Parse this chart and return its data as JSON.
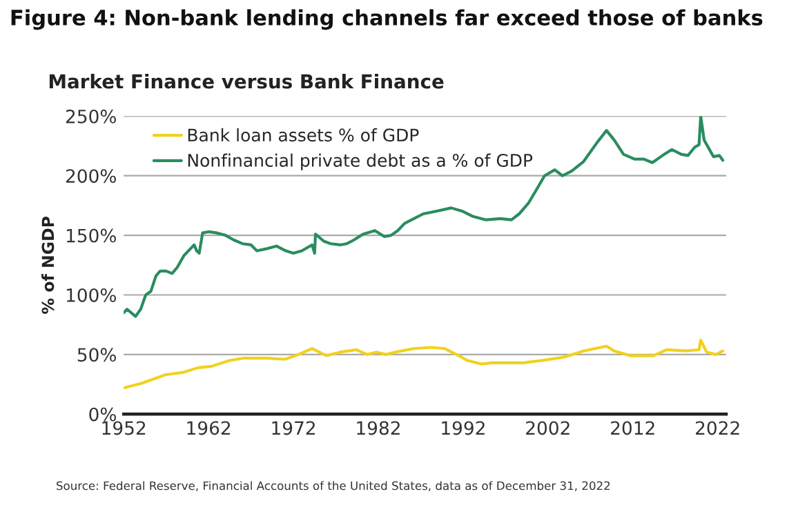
{
  "chart_data": {
    "type": "line",
    "title": "Figure 4: Non-bank lending channels far exceed those of banks",
    "subtitle": "Market Finance versus Bank Finance",
    "ylabel": "% of NGDP",
    "annotations": [
      "Source: Federal Reserve, Financial Accounts of the United States, data as of December 31, 2022"
    ],
    "series": [
      {
        "name": "Bank loan assets % of GDP",
        "color": "#f0d21e",
        "x": [
          1952,
          1954.2,
          1956.9,
          1959,
          1960.8,
          1962.3,
          1964.5,
          1966.2,
          1968.8,
          1971,
          1972.6,
          1974.2,
          1975.9,
          1977.5,
          1979.4,
          1980.7,
          1981.8,
          1982.9,
          1984,
          1986.2,
          1988.3,
          1989.8,
          1991.5,
          1992.5,
          1994.2,
          1995.3,
          1999.1,
          2001.3,
          2004,
          2006.2,
          2008.9,
          2009.8,
          2011.7,
          2014.4,
          2016,
          2018.2,
          2019.8,
          2020,
          2020.7,
          2021.8,
          2022.6
        ],
        "values": [
          22,
          26,
          33,
          35,
          39,
          40,
          45,
          47,
          47,
          46,
          50,
          55,
          49,
          52,
          54,
          50,
          52,
          50,
          52,
          55,
          56,
          55,
          49,
          45,
          42,
          43,
          43,
          45,
          48,
          53,
          57,
          53,
          49,
          49,
          54,
          53,
          54,
          62,
          52,
          50,
          53
        ]
      },
      {
        "name": "Nonfinancial private debt as a % of GDP",
        "color": "#2a8c5f",
        "x": [
          1952,
          1952.4,
          1953.4,
          1954,
          1954.6,
          1955.2,
          1955.8,
          1956.3,
          1957,
          1957.7,
          1958.3,
          1959.1,
          1959.9,
          1960.3,
          1960.6,
          1960.9,
          1961.3,
          1962,
          1963,
          1964,
          1965,
          1966,
          1967,
          1967.7,
          1969,
          1970,
          1971.1,
          1972,
          1973,
          1974.2,
          1974.5,
          1974.6,
          1975.6,
          1976.4,
          1977.5,
          1978.3,
          1979.1,
          1980.2,
          1981.6,
          1982.7,
          1983.5,
          1984.3,
          1985.1,
          1986.2,
          1987.3,
          1988.7,
          1990.6,
          1992,
          1993.1,
          1994.7,
          1996.4,
          1997.7,
          1998.6,
          1999.7,
          2000.7,
          2001.6,
          2002.8,
          2003.7,
          2004.8,
          2006.2,
          2007.8,
          2008.9,
          2009.8,
          2010.9,
          2012.2,
          2013.3,
          2014.3,
          2015.5,
          2016.6,
          2017.7,
          2018.5,
          2019.3,
          2019.8,
          2020,
          2020.4,
          2021.5,
          2022.2,
          2022.6
        ],
        "values": [
          85,
          88,
          82,
          88,
          100,
          103,
          116,
          120,
          120,
          118,
          123,
          133,
          139,
          142,
          137,
          135,
          152,
          153,
          152,
          150,
          146,
          143,
          142,
          137,
          139,
          141,
          137,
          135,
          137,
          142,
          135,
          151,
          145,
          143,
          142,
          143,
          146,
          151,
          154,
          149,
          150,
          154,
          160,
          164,
          168,
          170,
          173,
          170,
          166,
          163,
          164,
          163,
          168,
          177,
          189,
          200,
          205,
          200,
          204,
          212,
          228,
          238,
          230,
          218,
          214,
          214,
          211,
          217,
          222,
          218,
          217,
          224,
          226,
          250,
          230,
          216,
          217,
          213
        ]
      }
    ],
    "xlim": [
      1952,
      2023
    ],
    "xticks": [
      1952,
      1962,
      1972,
      1982,
      1992,
      2002,
      2012,
      2022
    ],
    "ylim": [
      0,
      250
    ],
    "yticks": [
      {
        "value": 0,
        "label": "0%"
      },
      {
        "value": 50,
        "label": "50%"
      },
      {
        "value": 100,
        "label": "100%"
      },
      {
        "value": 150,
        "label": "150%"
      },
      {
        "value": 200,
        "label": "200%"
      },
      {
        "value": 250,
        "label": "250%"
      }
    ],
    "grid": "y",
    "legend": "top left",
    "marker": "none",
    "line_style": "solid"
  }
}
